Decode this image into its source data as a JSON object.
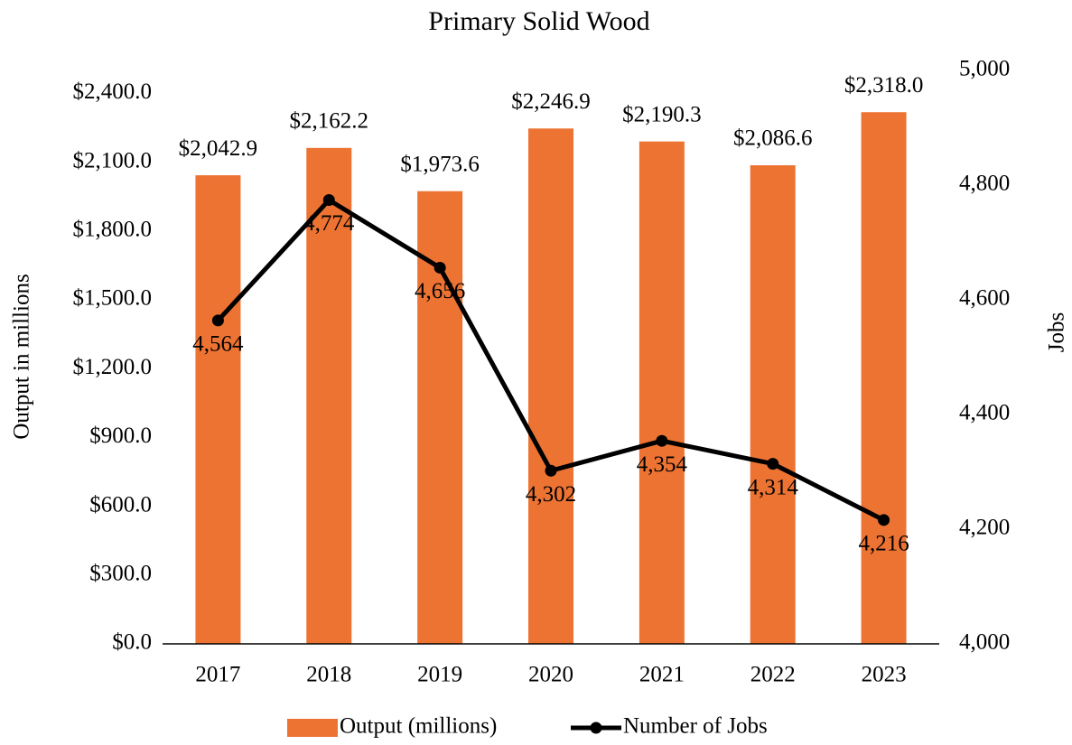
{
  "chart_data": {
    "type": "bar_line",
    "title": "Primary Solid Wood",
    "categories": [
      "2017",
      "2018",
      "2019",
      "2020",
      "2021",
      "2022",
      "2023"
    ],
    "series": [
      {
        "name": "Output (millions)",
        "type": "bar",
        "axis": "y",
        "color": "#ed7333",
        "values": [
          2042.9,
          2162.2,
          1973.6,
          2246.9,
          2190.3,
          2086.6,
          2318.0
        ],
        "value_labels": [
          "$2,042.9",
          "$2,162.2",
          "$1,973.6",
          "$2,246.9",
          "$2,190.3",
          "$2,086.6",
          "$2,318.0"
        ]
      },
      {
        "name": "Number of Jobs",
        "type": "line",
        "axis": "y2",
        "color": "#000000",
        "values": [
          4564,
          4774,
          4656,
          4302,
          4354,
          4314,
          4216
        ],
        "value_labels": [
          "4,564",
          "4,774",
          "4,656",
          "4,302",
          "4,354",
          "4,314",
          "4,216"
        ]
      }
    ],
    "y_label": "Output in millions",
    "y2_label": "Jobs",
    "ylim": [
      0,
      2500
    ],
    "yticks": [
      {
        "value": 0,
        "label": "$0.0"
      },
      {
        "value": 300,
        "label": "$300.0"
      },
      {
        "value": 600,
        "label": "$600.0"
      },
      {
        "value": 900,
        "label": "$900.0"
      },
      {
        "value": 1200,
        "label": "$1,200.0"
      },
      {
        "value": 1500,
        "label": "$1,500.0"
      },
      {
        "value": 1800,
        "label": "$1,800.0"
      },
      {
        "value": 2100,
        "label": "$2,100.0"
      },
      {
        "value": 2400,
        "label": "$2,400.0"
      }
    ],
    "y2lim": [
      4000,
      5000
    ],
    "y2ticks": [
      {
        "value": 4000,
        "label": "4,000"
      },
      {
        "value": 4200,
        "label": "4,200"
      },
      {
        "value": 4400,
        "label": "4,400"
      },
      {
        "value": 4600,
        "label": "4,600"
      },
      {
        "value": 4800,
        "label": "4,800"
      },
      {
        "value": 5000,
        "label": "5,000"
      }
    ],
    "grid": false,
    "legend": "bottom"
  }
}
